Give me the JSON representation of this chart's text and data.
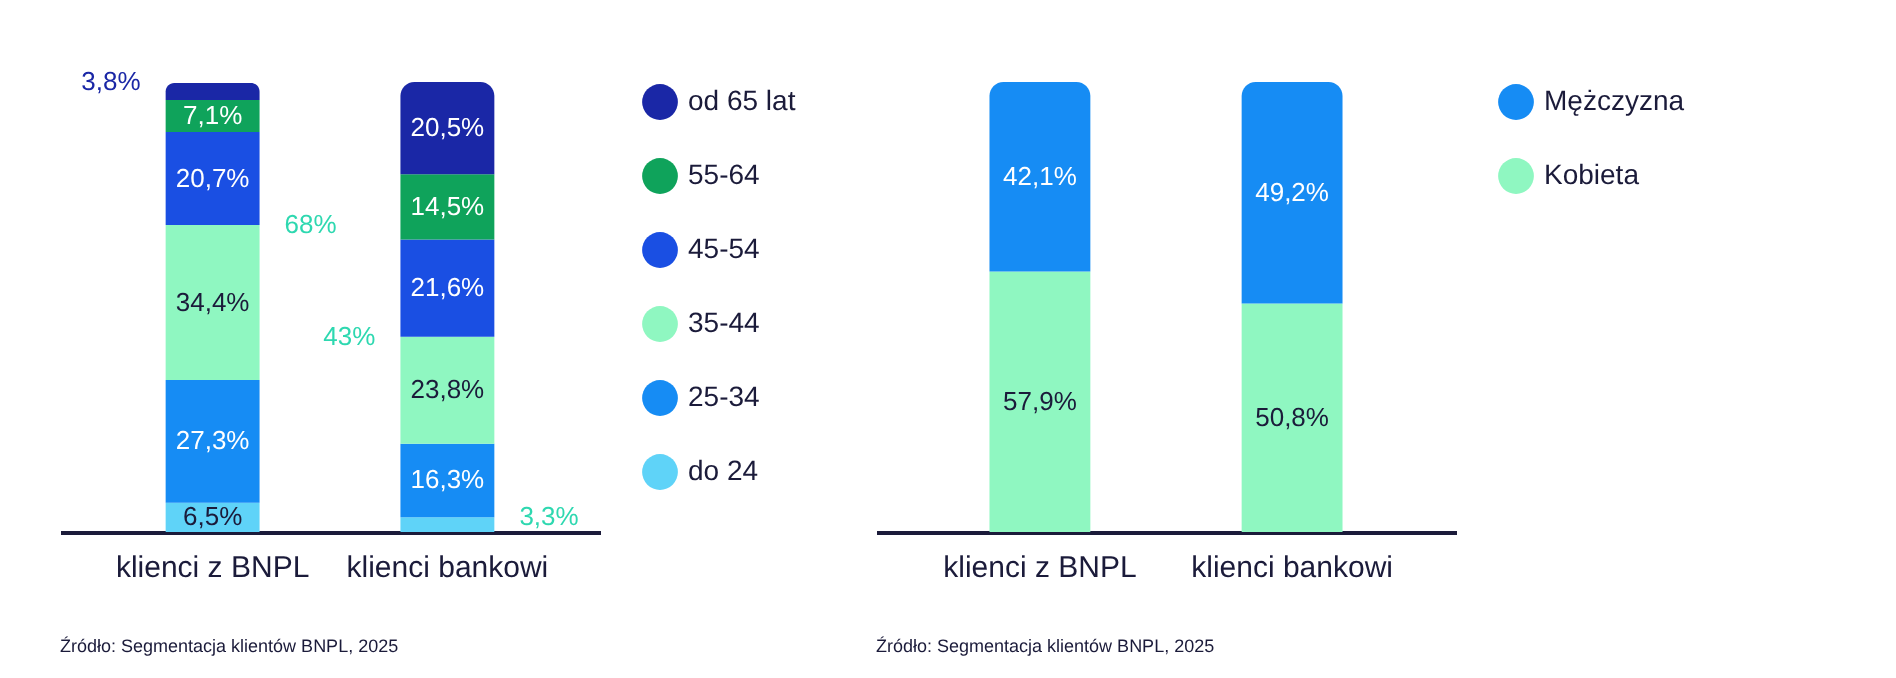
{
  "chart_data": [
    {
      "type": "bar",
      "stacked": true,
      "categories": [
        "klienci z BNPL",
        "klienci bankowi"
      ],
      "ylim": [
        0,
        100
      ],
      "tick_labels": "x",
      "legend": "right",
      "series": [
        {
          "name": "do 24",
          "color": "#5fd3f8",
          "values": [
            6.5,
            3.3
          ],
          "value_labels": [
            "6,5%",
            null
          ]
        },
        {
          "name": "25-34",
          "color": "#168cf4",
          "values": [
            27.3,
            16.3
          ],
          "value_labels": [
            "27,3%",
            "16,3%"
          ]
        },
        {
          "name": "35-44",
          "color": "#8ff7c1",
          "values": [
            34.4,
            23.8
          ],
          "value_labels": [
            "34,4%",
            "23,8%"
          ]
        },
        {
          "name": "45-54",
          "color": "#1a4fe3",
          "values": [
            20.7,
            21.6
          ],
          "value_labels": [
            "20,7%",
            "21,6%"
          ]
        },
        {
          "name": "55-64",
          "color": "#0fa35b",
          "values": [
            7.1,
            14.5
          ],
          "value_labels": [
            "7,1%",
            "14,5%"
          ]
        },
        {
          "name": "od 65 lat",
          "color": "#1a27a6",
          "values": [
            3.8,
            20.5
          ],
          "value_labels": [
            null,
            "20,5%"
          ]
        }
      ],
      "annotations": [
        {
          "text": "3,8%",
          "x": "klienci z BNPL",
          "y": 100
        },
        {
          "text": "68%",
          "x": "klienci z BNPL",
          "y": 68.2
        },
        {
          "text": "43%",
          "x": "klienci bankowi",
          "y": 43.4
        },
        {
          "text": "3,3%",
          "x": "klienci bankowi",
          "y": 3.3
        },
        "Źródło: Segmentacja klientów BNPL, 2025"
      ]
    },
    {
      "type": "bar",
      "stacked": true,
      "categories": [
        "klienci z BNPL",
        "klienci bankowi"
      ],
      "ylim": [
        0,
        100
      ],
      "tick_labels": "x",
      "legend": "right",
      "series": [
        {
          "name": "Kobieta",
          "color": "#8ff7c1",
          "values": [
            57.9,
            50.8
          ],
          "value_labels": [
            "57,9%",
            "50,8%"
          ]
        },
        {
          "name": "Mężczyzna",
          "color": "#168cf4",
          "values": [
            42.1,
            49.2
          ],
          "value_labels": [
            "42,1%",
            "49,2%"
          ]
        }
      ],
      "annotations": [
        "Źródło: Segmentacja klientów BNPL, 2025"
      ]
    }
  ]
}
